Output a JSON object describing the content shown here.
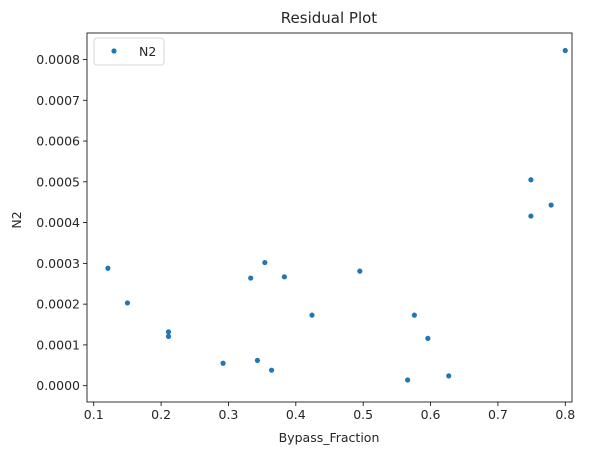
{
  "chart_data": {
    "type": "scatter",
    "title": "Residual Plot",
    "xlabel": "Bypass_Fraction",
    "ylabel": "N2",
    "xlim": [
      0.09,
      0.81
    ],
    "ylim": [
      -4e-05,
      0.000865
    ],
    "xticks": [
      0.1,
      0.2,
      0.3,
      0.4,
      0.5,
      0.6,
      0.7,
      0.8
    ],
    "xtick_labels": [
      "0.1",
      "0.2",
      "0.3",
      "0.4",
      "0.5",
      "0.6",
      "0.7",
      "0.8"
    ],
    "yticks": [
      0.0,
      0.0001,
      0.0002,
      0.0003,
      0.0004,
      0.0005,
      0.0006,
      0.0007,
      0.0008
    ],
    "ytick_labels": [
      "0.0000",
      "0.0001",
      "0.0002",
      "0.0003",
      "0.0004",
      "0.0005",
      "0.0006",
      "0.0007",
      "0.0008"
    ],
    "grid": false,
    "legend": {
      "position": "top-left"
    },
    "series": [
      {
        "name": "N2",
        "color": "#1f77b4",
        "points": [
          {
            "x": 0.121,
            "y": 0.000288
          },
          {
            "x": 0.15,
            "y": 0.000203
          },
          {
            "x": 0.211,
            "y": 0.000132
          },
          {
            "x": 0.211,
            "y": 0.000121
          },
          {
            "x": 0.292,
            "y": 5.5e-05
          },
          {
            "x": 0.333,
            "y": 0.000264
          },
          {
            "x": 0.343,
            "y": 6.2e-05
          },
          {
            "x": 0.354,
            "y": 0.000302
          },
          {
            "x": 0.364,
            "y": 3.8e-05
          },
          {
            "x": 0.383,
            "y": 0.000267
          },
          {
            "x": 0.424,
            "y": 0.000173
          },
          {
            "x": 0.495,
            "y": 0.000281
          },
          {
            "x": 0.566,
            "y": 1.4e-05
          },
          {
            "x": 0.576,
            "y": 0.000173
          },
          {
            "x": 0.596,
            "y": 0.000116
          },
          {
            "x": 0.627,
            "y": 2.4e-05
          },
          {
            "x": 0.749,
            "y": 0.000505
          },
          {
            "x": 0.749,
            "y": 0.000416
          },
          {
            "x": 0.779,
            "y": 0.000443
          },
          {
            "x": 0.8,
            "y": 0.000822
          }
        ]
      }
    ]
  }
}
